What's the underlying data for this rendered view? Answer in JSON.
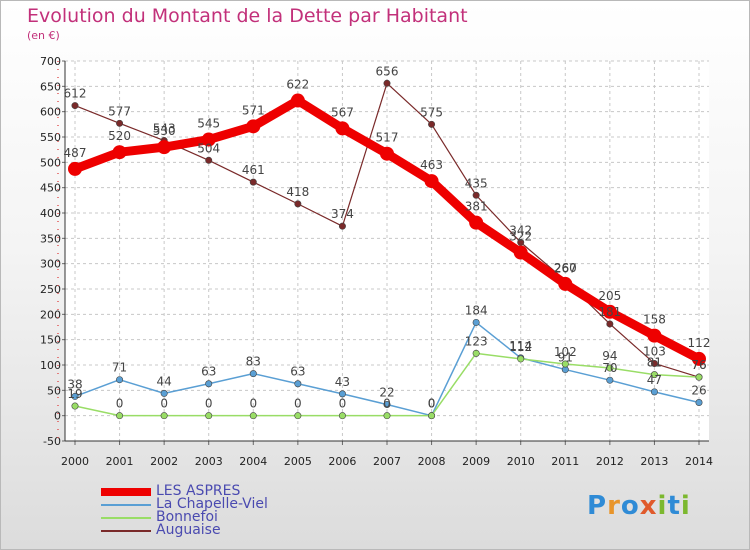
{
  "title": "Evolution du Montant de la Dette par Habitant",
  "subtitle": "(en €)",
  "logo": [
    "P",
    "r",
    "o",
    "x",
    "i",
    "t",
    "i"
  ],
  "colors": {
    "logo": [
      "#2f8bd6",
      "#e8952b",
      "#2f8bd6",
      "#e05a2b",
      "#7cb82f",
      "#2f8bd6",
      "#7cb82f"
    ]
  },
  "chart_data": {
    "type": "line",
    "ylim": [
      -50,
      700
    ],
    "yticks": [
      -50,
      0,
      50,
      100,
      150,
      200,
      250,
      300,
      350,
      400,
      450,
      500,
      550,
      600,
      650,
      700
    ],
    "categories": [
      "2000",
      "2001",
      "2002",
      "2003",
      "2004",
      "2005",
      "2006",
      "2007",
      "2008",
      "2009",
      "2010",
      "2011",
      "2012",
      "2013",
      "2014"
    ],
    "grid": true,
    "legend_position": "bottom-left",
    "series": [
      {
        "name": "LES ASPRES",
        "color": "#ee0000",
        "width": 9,
        "values": [
          487,
          520,
          530,
          545,
          571,
          622,
          567,
          517,
          463,
          381,
          322,
          260,
          205,
          158,
          112
        ],
        "labels": [
          "487",
          "520",
          "530",
          "545",
          "571",
          "622",
          "567",
          "517",
          "463",
          "381",
          "322",
          "260",
          "205",
          "158",
          "112"
        ]
      },
      {
        "name": "La Chapelle-Viel",
        "color": "#5a9fd4",
        "width": 1.5,
        "values": [
          38,
          71,
          44,
          63,
          83,
          63,
          43,
          22,
          0,
          184,
          114,
          91,
          70,
          47,
          26
        ],
        "labels": [
          "38",
          "71",
          "44",
          "63",
          "83",
          "63",
          "43",
          "22",
          "0",
          "184",
          "114",
          "91",
          "70",
          "47",
          "26"
        ]
      },
      {
        "name": "Bonnefoi",
        "color": "#99dd66",
        "width": 1.5,
        "values": [
          19,
          0,
          0,
          0,
          0,
          0,
          0,
          0,
          0,
          123,
          112,
          102,
          94,
          81,
          76
        ],
        "labels": [
          "19",
          "0",
          "0",
          "0",
          "0",
          "0",
          "0",
          "0",
          "0",
          "123",
          "112",
          "102",
          "94",
          "81",
          "76"
        ]
      },
      {
        "name": "Auguaise",
        "color": "#7a2a2a",
        "width": 1.2,
        "values": [
          612,
          577,
          543,
          504,
          461,
          418,
          374,
          656,
          575,
          435,
          342,
          267,
          181,
          103,
          76
        ],
        "segments": [
          [
            0,
            6
          ],
          [
            6,
            14
          ]
        ],
        "labels": [
          "612",
          "577",
          "543",
          "504",
          "461",
          "418",
          "374",
          "656",
          "575",
          "435",
          "342",
          "267",
          "181",
          "103",
          "76"
        ]
      }
    ]
  }
}
